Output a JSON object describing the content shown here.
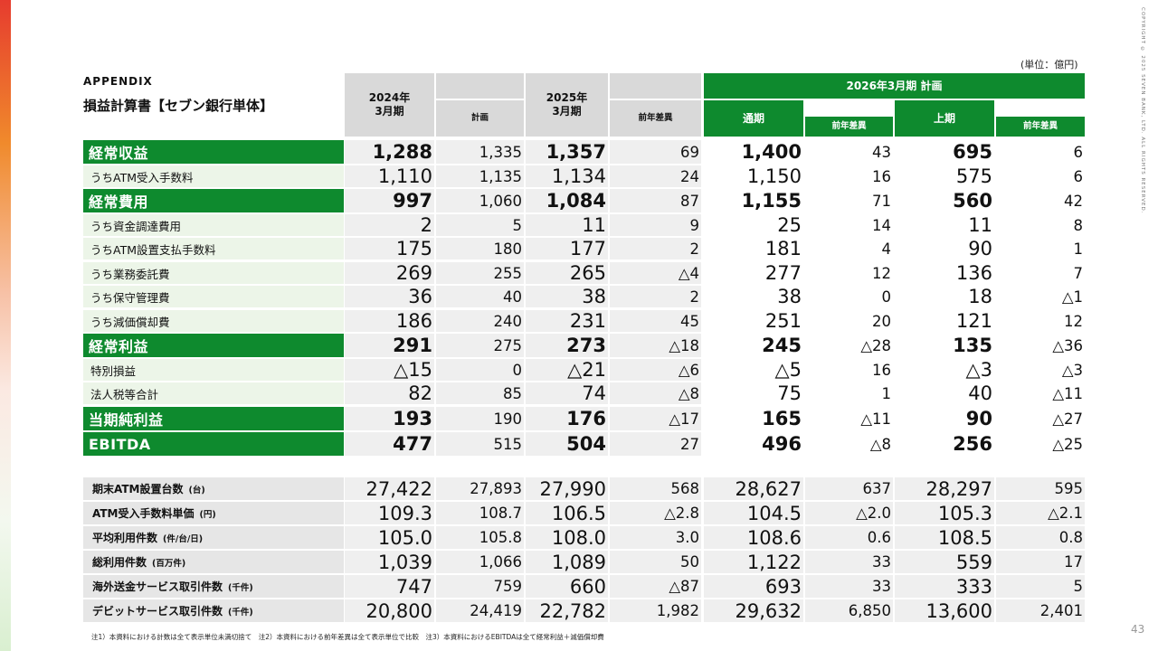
{
  "copyright": "COPYRIGHT © 2025 SEVEN BANK, LTD. ALL RIGHTS RESERVED.",
  "unit": "(単位：億円)",
  "appendix": "APPENDIX",
  "title": "損益計算書【セブン銀行単体】",
  "headers": {
    "fy2024": "2024年\n3月期",
    "plan": "計画",
    "fy2025": "2025年\n3月期",
    "yoy": "前年差異",
    "fy2026": "2026年3月期 計画",
    "full_year": "通期",
    "yoy_full": "前年差異",
    "half_year": "上期",
    "yoy_half": "前年差異"
  },
  "pl_rows": [
    {
      "label": "経常収益",
      "style": "main",
      "values": [
        "1,288",
        "1,335",
        "1,357",
        "69",
        "1,400",
        "43",
        "695",
        "6"
      ]
    },
    {
      "label": "うちATM受入手数料",
      "style": "sub",
      "values": [
        "1,110",
        "1,135",
        "1,134",
        "24",
        "1,150",
        "16",
        "575",
        "6"
      ]
    },
    {
      "label": "経常費用",
      "style": "main",
      "values": [
        "997",
        "1,060",
        "1,084",
        "87",
        "1,155",
        "71",
        "560",
        "42"
      ]
    },
    {
      "label": "うち資金調達費用",
      "style": "sub",
      "values": [
        "2",
        "5",
        "11",
        "9",
        "25",
        "14",
        "11",
        "8"
      ]
    },
    {
      "label": "うちATM設置支払手数料",
      "style": "sub",
      "values": [
        "175",
        "180",
        "177",
        "2",
        "181",
        "4",
        "90",
        "1"
      ]
    },
    {
      "label": "うち業務委託費",
      "style": "sub",
      "values": [
        "269",
        "255",
        "265",
        "△4",
        "277",
        "12",
        "136",
        "7"
      ]
    },
    {
      "label": "うち保守管理費",
      "style": "sub",
      "values": [
        "36",
        "40",
        "38",
        "2",
        "38",
        "0",
        "18",
        "△1"
      ]
    },
    {
      "label": "うち減価償却費",
      "style": "sub",
      "values": [
        "186",
        "240",
        "231",
        "45",
        "251",
        "20",
        "121",
        "12"
      ]
    },
    {
      "label": "経常利益",
      "style": "main",
      "values": [
        "291",
        "275",
        "273",
        "△18",
        "245",
        "△28",
        "135",
        "△36"
      ]
    },
    {
      "label": "特別損益",
      "style": "sub",
      "values": [
        "△15",
        "0",
        "△21",
        "△6",
        "△5",
        "16",
        "△3",
        "△3"
      ]
    },
    {
      "label": "法人税等合計",
      "style": "sub",
      "values": [
        "82",
        "85",
        "74",
        "△8",
        "75",
        "1",
        "40",
        "△11"
      ]
    },
    {
      "label": "当期純利益",
      "style": "main",
      "values": [
        "193",
        "190",
        "176",
        "△17",
        "165",
        "△11",
        "90",
        "△27"
      ]
    },
    {
      "label": "EBITDA",
      "style": "main",
      "values": [
        "477",
        "515",
        "504",
        "27",
        "496",
        "△8",
        "256",
        "△25"
      ]
    }
  ],
  "kpi_rows": [
    {
      "label": "期末ATM設置台数",
      "unit": "(台)",
      "values": [
        "27,422",
        "27,893",
        "27,990",
        "568",
        "28,627",
        "637",
        "28,297",
        "595"
      ]
    },
    {
      "label": "ATM受入手数料単価",
      "unit": "(円)",
      "values": [
        "109.3",
        "108.7",
        "106.5",
        "△2.8",
        "104.5",
        "△2.0",
        "105.3",
        "△2.1"
      ]
    },
    {
      "label": "平均利用件数",
      "unit": "(件/台/日)",
      "values": [
        "105.0",
        "105.8",
        "108.0",
        "3.0",
        "108.6",
        "0.6",
        "108.5",
        "0.8"
      ]
    },
    {
      "label": "総利用件数",
      "unit": "(百万件)",
      "values": [
        "1,039",
        "1,066",
        "1,089",
        "50",
        "1,122",
        "33",
        "559",
        "17"
      ]
    },
    {
      "label": "海外送金サービス取引件数",
      "unit": "(千件)",
      "values": [
        "747",
        "759",
        "660",
        "△87",
        "693",
        "33",
        "333",
        "5"
      ]
    },
    {
      "label": "デビットサービス取引件数",
      "unit": "(千件)",
      "values": [
        "20,800",
        "24,419",
        "22,782",
        "1,982",
        "29,632",
        "6,850",
        "13,600",
        "2,401"
      ]
    }
  ],
  "footnote": "注1）本資料における計数は全て表示単位未満切捨て　注2）本資料における前年差異は全て表示単位で比較　注3）本資料におけるEBITDAは全て経常利益＋減価償却費",
  "page_number": "43"
}
